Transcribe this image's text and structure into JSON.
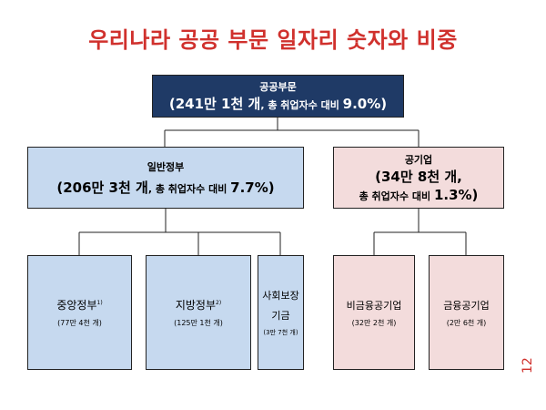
{
  "title": "우리나라 공공 부문 일자리 숫자와 비중",
  "root": {
    "name": "공공부문",
    "open": "(",
    "count": "241만 1천 개",
    "mid": ", 총 취업자수 대비 ",
    "pct": "9.0%",
    "close": ")"
  },
  "gov": {
    "name": "일반정부",
    "open": "(",
    "count": "206만 3천 개",
    "mid": ", 총 취업자수 대비 ",
    "pct": "7.7%",
    "close": ")"
  },
  "soe": {
    "name": "공기업",
    "open": "(",
    "count": "34만 8천 개,",
    "mid": "총 취업자수 대비 ",
    "pct": "1.3%",
    "close": ")"
  },
  "leaves": [
    {
      "name": "중앙정부",
      "sup": "1)",
      "sub": "(77만 4천 개)"
    },
    {
      "name": "지방정부",
      "sup": "2)",
      "sub": "(125만 1천 개)"
    },
    {
      "name": "사회보장",
      "name2": "기금",
      "sub": "(3만 7천 개)"
    },
    {
      "name": "비금융공기업",
      "sub": "(32만 2천 개)"
    },
    {
      "name": "금융공기업",
      "sub": "(2만 6천 개)"
    }
  ],
  "page_number": "12",
  "colors": {
    "title": "#d0312d",
    "root": "#1f3a66",
    "blue": "#c6d9ef",
    "pink": "#f3dcdc"
  }
}
